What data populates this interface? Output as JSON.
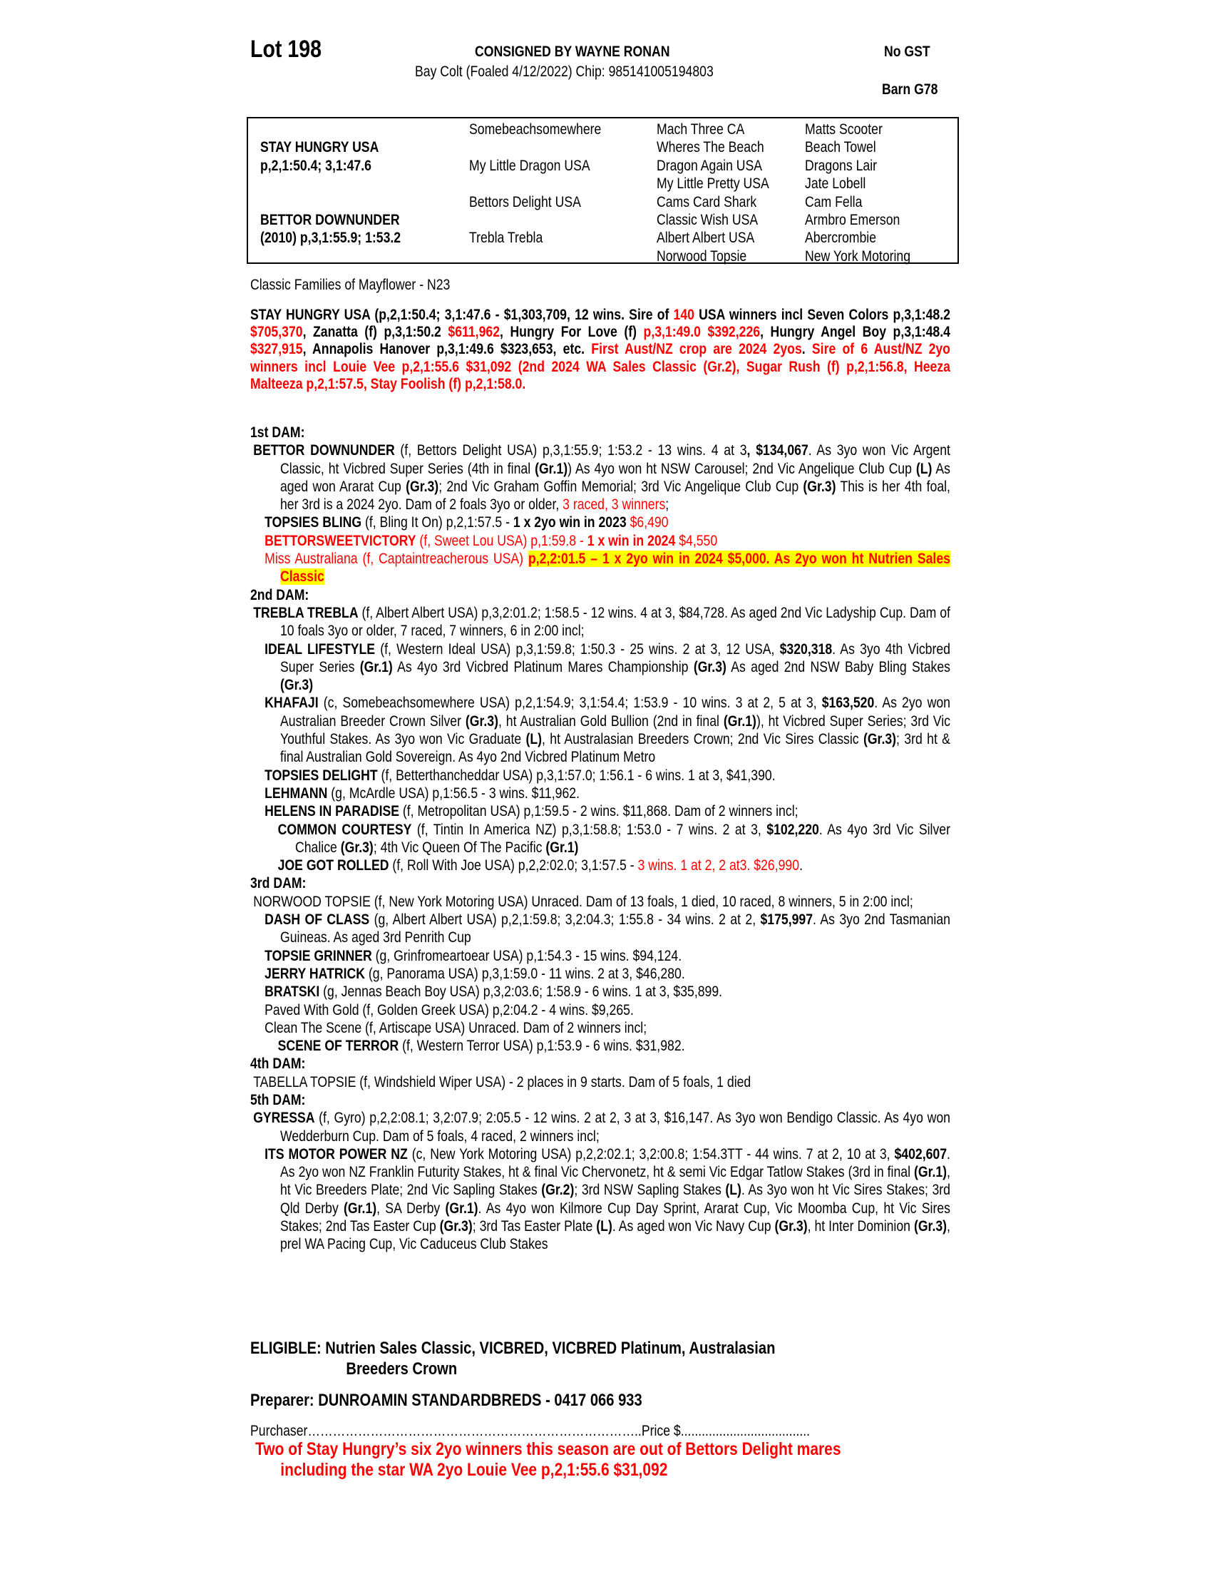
{
  "header": {
    "lot": "Lot 198",
    "consigned": "CONSIGNED BY WAYNE RONAN",
    "gst": "No GST",
    "description": "Bay Colt (Foaled 4/12/2022) Chip: 985141005194803",
    "barn": "Barn G78"
  },
  "pedigree": {
    "sire": {
      "name": "STAY HUNGRY USA",
      "record": "p,2,1:50.4; 3,1:47.6"
    },
    "dam": {
      "name": "BETTOR DOWNUNDER",
      "record": "(2010) p,3,1:55.9; 1:53.2"
    },
    "col2": [
      "Somebeachsomewhere",
      "My Little Dragon USA",
      "Bettors Delight USA",
      "Trebla Trebla"
    ],
    "col3": [
      "Mach Three CA",
      "Wheres The Beach",
      "Dragon Again USA",
      "My Little Pretty USA",
      "Cams Card Shark",
      "Classic Wish USA",
      "Albert Albert USA",
      "Norwood Topsie"
    ],
    "col4": [
      "Matts Scooter",
      "Beach Towel",
      "Dragons Lair",
      "Jate Lobell",
      "Cam Fella",
      "Armbro Emerson",
      "Abercrombie",
      "New York Motoring"
    ]
  },
  "family": "Classic Families of Mayflower - N23",
  "sire_summary": [
    {
      "t": "STAY HUNGRY USA (p,2,1:50.4; 3,1:47.6 - $1,303,709, 12 wins. Sire of ",
      "s": "bold"
    },
    {
      "t": "140",
      "s": "bold red"
    },
    {
      "t": " USA winners incl Seven Colors p,3,1:48.2 ",
      "s": "bold"
    },
    {
      "t": "$705,370",
      "s": "bold red"
    },
    {
      "t": ", Zanatta (f) p,3,1:50.2 ",
      "s": "bold"
    },
    {
      "t": "$611,962",
      "s": "bold red"
    },
    {
      "t": ", Hungry For Love (f) ",
      "s": "bold"
    },
    {
      "t": "p,3,1:49.0 $392,226",
      "s": "bold red"
    },
    {
      "t": ", Hungry Angel Boy p,3,1:48.4 ",
      "s": "bold"
    },
    {
      "t": "$327,915",
      "s": "bold red"
    },
    {
      "t": ", Annapolis Hanover p,3,1:49.6 $323,653, etc. ",
      "s": "bold"
    },
    {
      "t": "First Aust/NZ  crop are 2024 2yos",
      "s": "bold red"
    },
    {
      "t": ". ",
      "s": "bold"
    },
    {
      "t": "Sire of 6 Aust/NZ 2yo winners incl Louie Vee p,2,1:55.6 $31,092 (2nd 2024 WA Sales Classic (Gr.2), Sugar Rush (f) p,2,1:56.8, Heeza Malteeza p,2,1:57.5, Stay Foolish (f) p,2,1:58.0.",
      "s": "bold red"
    }
  ],
  "dams": [
    {
      "heading": "1st DAM:",
      "entries": [
        {
          "level": 1,
          "segs": [
            {
              "t": "BETTOR DOWNUNDER",
              "s": "bold"
            },
            {
              "t": " (f, Bettors Delight USA) p,3,1:55.9; 1:53.2 - 13 wins. 4 at 3",
              "s": ""
            },
            {
              "t": ", $134,067",
              "s": "bold"
            },
            {
              "t": ". As 3yo won Vic Argent Classic, ht Vicbred Super Series (4th in final ",
              "s": ""
            },
            {
              "t": "(Gr.1)",
              "s": "bold"
            },
            {
              "t": ") As 4yo won ht NSW Carousel; 2nd Vic Angelique Club Cup ",
              "s": ""
            },
            {
              "t": "(L)",
              "s": "bold"
            },
            {
              "t": " As aged won Ararat Cup ",
              "s": ""
            },
            {
              "t": "(Gr.3)",
              "s": "bold"
            },
            {
              "t": "; 2nd Vic Graham Goffin Memorial; 3rd Vic Angelique Club Cup ",
              "s": ""
            },
            {
              "t": "(Gr.3)",
              "s": "bold"
            },
            {
              "t": " This is her 4th foal, her 3rd is a 2024 2yo. Dam of 2 foals 3yo or older, ",
              "s": ""
            },
            {
              "t": "3 raced, 3 winners",
              "s": "red"
            },
            {
              "t": ";",
              "s": ""
            }
          ]
        },
        {
          "level": 2,
          "segs": [
            {
              "t": "TOPSIES BLING",
              "s": "bold"
            },
            {
              "t": " (f, Bling It On) p,2,1:57.5 - ",
              "s": ""
            },
            {
              "t": "1 x 2yo win in 2023",
              "s": "bold"
            },
            {
              "t": " $6,490",
              "s": "red"
            }
          ]
        },
        {
          "level": 2,
          "segs": [
            {
              "t": "BETTORSWEETVICTORY",
              "s": "bold red"
            },
            {
              "t": " (f, Sweet Lou USA) p,1:59.8 - ",
              "s": "red"
            },
            {
              "t": "1 x win in 2024",
              "s": "bold red"
            },
            {
              "t": " $4,550",
              "s": "red"
            }
          ]
        },
        {
          "level": 2,
          "segs": [
            {
              "t": "Miss Australiana (f, Captaintreacherous USA) ",
              "s": "red"
            },
            {
              "t": "p,2,2:01.5 – 1 x 2yo win in 2024 $5,000. As 2yo won ht Nutrien Sales Classic",
              "s": "bold red highlight"
            }
          ]
        }
      ]
    },
    {
      "heading": "2nd DAM:",
      "entries": [
        {
          "level": 1,
          "segs": [
            {
              "t": "TREBLA TREBLA",
              "s": "bold"
            },
            {
              "t": " (f, Albert Albert USA) p,3,2:01.2; 1:58.5 - 12 wins. 4 at 3, $84,728. As aged 2nd Vic Ladyship Cup. Dam of 10 foals 3yo or older, 7 raced, 7 winners, 6 in 2:00 incl;",
              "s": ""
            }
          ]
        },
        {
          "level": 2,
          "segs": [
            {
              "t": "IDEAL LIFESTYLE",
              "s": "bold"
            },
            {
              "t": " (f, Western Ideal USA) p,3,1:59.8; 1:50.3 - 25 wins. 2 at 3, 12 USA, ",
              "s": ""
            },
            {
              "t": "$320,318",
              "s": "bold"
            },
            {
              "t": ". As 3yo 4th Vicbred Super Series ",
              "s": ""
            },
            {
              "t": "(Gr.1)",
              "s": "bold"
            },
            {
              "t": " As 4yo 3rd Vicbred Platinum Mares Championship ",
              "s": ""
            },
            {
              "t": "(Gr.3)",
              "s": "bold"
            },
            {
              "t": " As aged 2nd NSW Baby Bling Stakes ",
              "s": ""
            },
            {
              "t": "(Gr.3)",
              "s": "bold"
            }
          ]
        },
        {
          "level": 2,
          "segs": [
            {
              "t": "KHAFAJI",
              "s": "bold"
            },
            {
              "t": " (c, Somebeachsomewhere USA) p,2,1:54.9; 3,1:54.4; 1:53.9 - 10 wins. 3 at 2, 5 at 3, ",
              "s": ""
            },
            {
              "t": "$163,520",
              "s": "bold"
            },
            {
              "t": ". As 2yo won Australian Breeder Crown Silver ",
              "s": ""
            },
            {
              "t": "(Gr.3)",
              "s": "bold"
            },
            {
              "t": ", ht  Australian Gold Bullion (2nd in final ",
              "s": ""
            },
            {
              "t": "(Gr.1)",
              "s": "bold"
            },
            {
              "t": "), ht Vicbred Super Series; 3rd Vic Youthful Stakes. As 3yo won Vic Graduate ",
              "s": ""
            },
            {
              "t": "(L)",
              "s": "bold"
            },
            {
              "t": ", ht Australasian Breeders Crown; 2nd Vic Sires Classic ",
              "s": ""
            },
            {
              "t": "(Gr.3)",
              "s": "bold"
            },
            {
              "t": "; 3rd ht & final Australian Gold Sovereign. As 4yo 2nd Vicbred Platinum Metro",
              "s": ""
            }
          ]
        },
        {
          "level": 2,
          "segs": [
            {
              "t": "TOPSIES DELIGHT",
              "s": "bold"
            },
            {
              "t": " (f, Betterthancheddar USA) p,3,1:57.0; 1:56.1 - 6 wins. 1 at 3, $41,390.",
              "s": ""
            }
          ]
        },
        {
          "level": 2,
          "segs": [
            {
              "t": "LEHMANN",
              "s": "bold"
            },
            {
              "t": " (g, McArdle USA) p,1:56.5 - 3 wins. $11,962.",
              "s": ""
            }
          ]
        },
        {
          "level": 2,
          "segs": [
            {
              "t": "HELENS IN PARADISE",
              "s": "bold"
            },
            {
              "t": " (f, Metropolitan USA) p,1:59.5 - 2 wins. $11,868. Dam of 2 winners incl;",
              "s": ""
            }
          ]
        },
        {
          "level": 3,
          "segs": [
            {
              "t": "COMMON COURTESY",
              "s": "bold"
            },
            {
              "t": " (f, Tintin In America NZ) p,3,1:58.8; 1:53.0 - 7 wins. 2 at 3, ",
              "s": ""
            },
            {
              "t": "$102,220",
              "s": "bold"
            },
            {
              "t": ". As 4yo 3rd Vic Silver Chalice ",
              "s": ""
            },
            {
              "t": "(Gr.3)",
              "s": "bold"
            },
            {
              "t": "; 4th Vic Queen Of The Pacific ",
              "s": ""
            },
            {
              "t": "(Gr.1)",
              "s": "bold"
            }
          ]
        },
        {
          "level": 3,
          "segs": [
            {
              "t": "JOE GOT ROLLED",
              "s": "bold"
            },
            {
              "t": " (f, Roll With Joe USA) p,2,2:02.0; 3,1:57.5 - ",
              "s": ""
            },
            {
              "t": "3 wins. 1 at 2, 2 at3. $26,990",
              "s": "red"
            },
            {
              "t": ".",
              "s": ""
            }
          ]
        }
      ]
    },
    {
      "heading": "3rd DAM:",
      "entries": [
        {
          "level": 1,
          "segs": [
            {
              "t": "NORWOOD TOPSIE (f, New York Motoring USA) Unraced. Dam of 13 foals, 1 died, 10 raced, 8 winners, 5 in 2:00 incl;",
              "s": ""
            }
          ]
        },
        {
          "level": 2,
          "segs": [
            {
              "t": "DASH OF CLASS",
              "s": "bold"
            },
            {
              "t": " (g, Albert Albert USA) p,2,1:59.8; 3,2:04.3; 1:55.8 - 34 wins. 2 at 2, ",
              "s": ""
            },
            {
              "t": "$175,997",
              "s": "bold"
            },
            {
              "t": ". As 3yo 2nd Tasmanian Guineas. As aged 3rd Penrith Cup",
              "s": ""
            }
          ]
        },
        {
          "level": 2,
          "segs": [
            {
              "t": "TOPSIE GRINNER",
              "s": "bold"
            },
            {
              "t": " (g, Grinfromeartoear USA) p,1:54.3 - 15 wins. $94,124.",
              "s": ""
            }
          ]
        },
        {
          "level": 2,
          "segs": [
            {
              "t": "JERRY HATRICK",
              "s": "bold"
            },
            {
              "t": " (g, Panorama USA) p,3,1:59.0 - 11 wins. 2 at 3, $46,280.",
              "s": ""
            }
          ]
        },
        {
          "level": 2,
          "segs": [
            {
              "t": "BRATSKI",
              "s": "bold"
            },
            {
              "t": " (g, Jennas Beach Boy USA) p,3,2:03.6; 1:58.9 - 6 wins. 1 at 3, $35,899.",
              "s": ""
            }
          ]
        },
        {
          "level": 2,
          "segs": [
            {
              "t": "Paved With Gold (f, Golden Greek USA) p,2:04.2 - 4 wins. $9,265.",
              "s": ""
            }
          ]
        },
        {
          "level": 2,
          "segs": [
            {
              "t": "Clean The Scene (f, Artiscape USA) Unraced. Dam of 2 winners incl;",
              "s": ""
            }
          ]
        },
        {
          "level": 3,
          "segs": [
            {
              "t": "SCENE OF TERROR",
              "s": "bold"
            },
            {
              "t": " (f, Western Terror USA) p,1:53.9 - 6 wins. $31,982.",
              "s": ""
            }
          ]
        }
      ]
    },
    {
      "heading": "4th DAM:",
      "entries": [
        {
          "level": 1,
          "segs": [
            {
              "t": "TABELLA TOPSIE (f, Windshield Wiper USA) - 2 places in 9 starts. Dam of 5 foals, 1 died",
              "s": ""
            }
          ]
        }
      ]
    },
    {
      "heading": "5th DAM:",
      "entries": [
        {
          "level": 1,
          "segs": [
            {
              "t": "GYRESSA",
              "s": "bold"
            },
            {
              "t": " (f, Gyro) p,2,2:08.1; 3,2:07.9; 2:05.5 - 12 wins. 2 at 2, 3 at 3, $16,147. As 3yo won Bendigo Classic. As 4yo won Wedderburn Cup. Dam of 5 foals, 4 raced, 2 winners incl;",
              "s": ""
            }
          ]
        },
        {
          "level": 2,
          "segs": [
            {
              "t": "ITS MOTOR POWER NZ",
              "s": "bold"
            },
            {
              "t": " (c, New York Motoring USA) p,2,2:02.1; 3,2:00.8; 1:54.3TT - 44 wins. 7 at 2, 10 at 3, ",
              "s": ""
            },
            {
              "t": "$402,607",
              "s": "bold"
            },
            {
              "t": ". As 2yo won NZ Franklin Futurity Stakes, ht & final Vic Chervonetz, ht & semi Vic Edgar Tatlow Stakes (3rd in final ",
              "s": ""
            },
            {
              "t": "(Gr.1)",
              "s": "bold"
            },
            {
              "t": ", ht Vic Breeders Plate; 2nd Vic Sapling Stakes ",
              "s": ""
            },
            {
              "t": "(Gr.2)",
              "s": "bold"
            },
            {
              "t": "; 3rd NSW Sapling Stakes ",
              "s": ""
            },
            {
              "t": "(L)",
              "s": "bold"
            },
            {
              "t": ". As 3yo won ht Vic Sires Stakes; 3rd Qld Derby ",
              "s": ""
            },
            {
              "t": "(Gr.1)",
              "s": "bold"
            },
            {
              "t": ", SA Derby ",
              "s": ""
            },
            {
              "t": "(Gr.1)",
              "s": "bold"
            },
            {
              "t": ". As 4yo won Kilmore Cup Day Sprint, Ararat Cup, Vic Moomba Cup, ht Vic Sires Stakes; 2nd Tas Easter Cup ",
              "s": ""
            },
            {
              "t": "(Gr.3)",
              "s": "bold"
            },
            {
              "t": "; 3rd Tas Easter Plate ",
              "s": ""
            },
            {
              "t": "(L)",
              "s": "bold"
            },
            {
              "t": ". As aged won Vic Navy Cup ",
              "s": ""
            },
            {
              "t": "(Gr.3)",
              "s": "bold"
            },
            {
              "t": ", ht Inter Dominion ",
              "s": ""
            },
            {
              "t": "(Gr.3)",
              "s": "bold"
            },
            {
              "t": ", prel WA Pacing Cup, Vic Caduceus Club Stakes",
              "s": ""
            }
          ]
        }
      ]
    }
  ],
  "eligible": {
    "line1": "ELIGIBLE: Nutrien Sales Classic, VICBRED, VICBRED Platinum, Australasian",
    "line2": "Breeders Crown"
  },
  "preparer": "Preparer: DUNROAMIN STANDARDBREDS - 0417 066 933",
  "purchaser": "Purchaser……………………………………………………………………..Price $.....................................",
  "footer": {
    "line1": "Two of Stay Hungry’s six 2yo winners this season are out of Bettors Delight mares",
    "line2": "including the star WA 2yo Louie Vee p,2,1:55.6 $31,092"
  },
  "colors": {
    "red": "#ff0000",
    "highlight": "#ffff00"
  }
}
